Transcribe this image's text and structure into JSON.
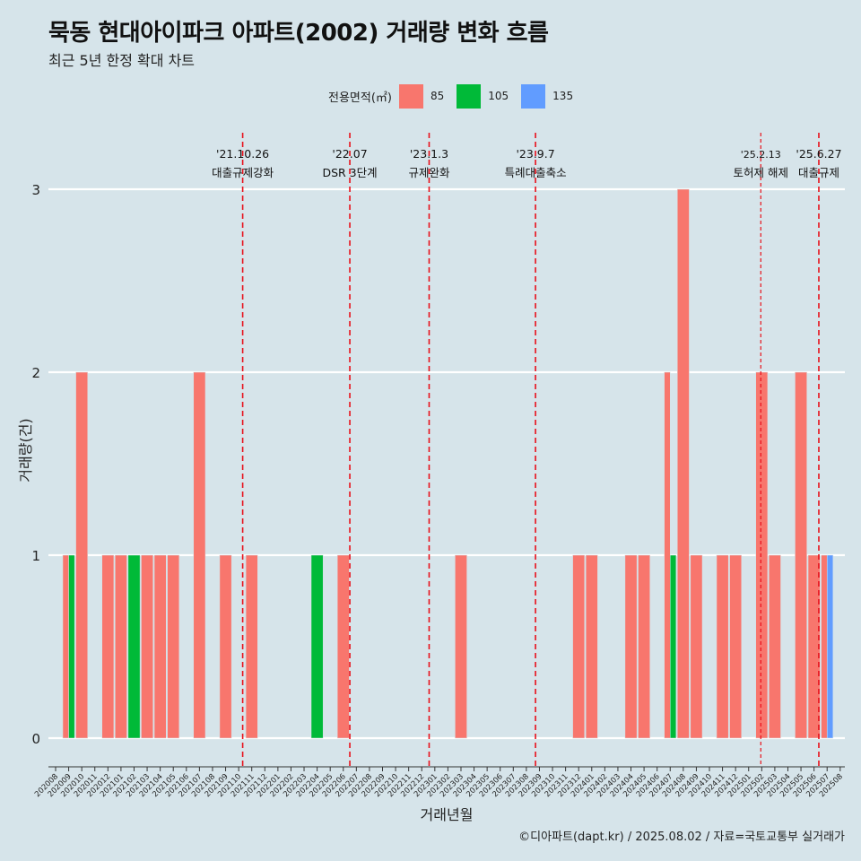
{
  "title": "묵동 현대아이파크 아파트(2002) 거래량 변화 흐름",
  "subtitle": "최근 5년 한정 확대 차트",
  "legend": {
    "title": "전용면적(㎡)",
    "items": [
      {
        "label": "85",
        "color": "#F8766D"
      },
      {
        "label": "105",
        "color": "#00BA38"
      },
      {
        "label": "135",
        "color": "#619CFF"
      }
    ]
  },
  "caption": "©디아파트(dapt.kr) / 2025.08.02 / 자료=국토교통부 실거래가",
  "chart_data": {
    "type": "bar",
    "stacked": false,
    "dodged": true,
    "xlabel": "거래년월",
    "ylabel": "거래량(건)",
    "yticks": [
      0,
      1,
      2,
      3
    ],
    "ylim": [
      0,
      3
    ],
    "grid": true,
    "legend_position": "top",
    "categories": [
      "202008",
      "202009",
      "202010",
      "202011",
      "202012",
      "202101",
      "202102",
      "202103",
      "202104",
      "202105",
      "202106",
      "202107",
      "202108",
      "202109",
      "202110",
      "202111",
      "202112",
      "202201",
      "202202",
      "202203",
      "202204",
      "202205",
      "202206",
      "202207",
      "202208",
      "202209",
      "202210",
      "202211",
      "202212",
      "202301",
      "202302",
      "202303",
      "202304",
      "202305",
      "202306",
      "202307",
      "202308",
      "202309",
      "202310",
      "202311",
      "202312",
      "202401",
      "202402",
      "202403",
      "202404",
      "202405",
      "202406",
      "202407",
      "202408",
      "202409",
      "202410",
      "202411",
      "202412",
      "202501",
      "202502",
      "202503",
      "202504",
      "202505",
      "202506",
      "202507",
      "202508"
    ],
    "points": [
      {
        "month": "202009",
        "area": "85",
        "value": 1
      },
      {
        "month": "202009",
        "area": "105",
        "value": 1
      },
      {
        "month": "202010",
        "area": "85",
        "value": 2
      },
      {
        "month": "202012",
        "area": "85",
        "value": 1
      },
      {
        "month": "202101",
        "area": "85",
        "value": 1
      },
      {
        "month": "202102",
        "area": "105",
        "value": 1
      },
      {
        "month": "202103",
        "area": "85",
        "value": 1
      },
      {
        "month": "202104",
        "area": "85",
        "value": 1
      },
      {
        "month": "202105",
        "area": "85",
        "value": 1
      },
      {
        "month": "202107",
        "area": "85",
        "value": 2
      },
      {
        "month": "202109",
        "area": "85",
        "value": 1
      },
      {
        "month": "202111",
        "area": "85",
        "value": 1
      },
      {
        "month": "202204",
        "area": "105",
        "value": 1
      },
      {
        "month": "202206",
        "area": "85",
        "value": 1
      },
      {
        "month": "202303",
        "area": "85",
        "value": 1
      },
      {
        "month": "202312",
        "area": "85",
        "value": 1
      },
      {
        "month": "202401",
        "area": "85",
        "value": 1
      },
      {
        "month": "202404",
        "area": "85",
        "value": 1
      },
      {
        "month": "202405",
        "area": "85",
        "value": 1
      },
      {
        "month": "202407",
        "area": "85",
        "value": 2
      },
      {
        "month": "202407",
        "area": "105",
        "value": 1
      },
      {
        "month": "202408",
        "area": "85",
        "value": 3
      },
      {
        "month": "202409",
        "area": "85",
        "value": 1
      },
      {
        "month": "202411",
        "area": "85",
        "value": 1
      },
      {
        "month": "202412",
        "area": "85",
        "value": 1
      },
      {
        "month": "202502",
        "area": "85",
        "value": 2
      },
      {
        "month": "202503",
        "area": "85",
        "value": 1
      },
      {
        "month": "202505",
        "area": "85",
        "value": 2
      },
      {
        "month": "202506",
        "area": "85",
        "value": 1
      },
      {
        "month": "202507",
        "area": "85",
        "value": 1
      },
      {
        "month": "202507",
        "area": "135",
        "value": 1
      }
    ],
    "events": [
      {
        "date": "2021-10-26",
        "line1": "'21.10.26",
        "line2": "대출규제강화",
        "dashed": "long"
      },
      {
        "date": "2022-07",
        "line1": "'22.07",
        "line2": "DSR 3단계",
        "dashed": "long"
      },
      {
        "date": "2023-01-03",
        "line1": "'23.1.3",
        "line2": "규제완화",
        "dashed": "long"
      },
      {
        "date": "2023-09-07",
        "line1": "'23.9.7",
        "line2": "특례대출축소",
        "dashed": "long"
      },
      {
        "date": "2025-02-13",
        "line1": "'25.2.13",
        "line2": "토허제 해제",
        "dashed": "short"
      },
      {
        "date": "2025-06-27",
        "line1": "'25.6.27",
        "line2": "대출규제",
        "dashed": "long"
      }
    ]
  }
}
